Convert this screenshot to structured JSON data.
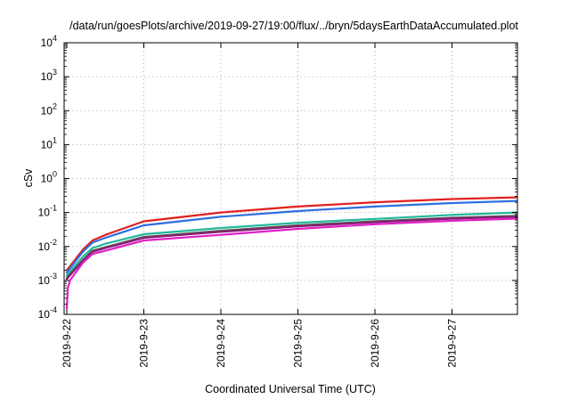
{
  "chart_data": {
    "type": "line",
    "title": "/data/run/goesPlots/archive/2019-09-27/19:00/flux/../bryn/5daysEarthDataAccumulated.plot",
    "xlabel": "Coordinated Universal Time (UTC)",
    "ylabel": "cSv",
    "y_scale": "log",
    "ylim": [
      0.0001,
      10000
    ],
    "x_range": [
      "2019-09-22T00:00",
      "2019-09-27T20:00"
    ],
    "y_ticks": [
      {
        "value": 0.0001,
        "base": "10",
        "exp": "-4"
      },
      {
        "value": 0.001,
        "base": "10",
        "exp": "-3"
      },
      {
        "value": 0.01,
        "base": "10",
        "exp": "-2"
      },
      {
        "value": 0.1,
        "base": "10",
        "exp": "-1"
      },
      {
        "value": 1,
        "base": "10",
        "exp": "0"
      },
      {
        "value": 10,
        "base": "10",
        "exp": "1"
      },
      {
        "value": 100,
        "base": "10",
        "exp": "2"
      },
      {
        "value": 1000,
        "base": "10",
        "exp": "3"
      },
      {
        "value": 10000,
        "base": "10",
        "exp": "4"
      }
    ],
    "x_ticks": [
      "2019-9-22",
      "2019-9-23",
      "2019-9-24",
      "2019-9-25",
      "2019-9-26",
      "2019-9-27"
    ],
    "grid": true,
    "legend": "none",
    "series": [
      {
        "color": "#e0201e",
        "x": [
          "2019-09-22T00:00",
          "2019-09-22T05:00",
          "2019-09-22T08:00",
          "2019-09-22T12:00",
          "2019-09-23T00:00",
          "2019-09-24T00:00",
          "2019-09-25T00:00",
          "2019-09-26T00:00",
          "2019-09-27T00:00",
          "2019-09-27T20:00"
        ],
        "y": [
          0.002,
          0.008,
          0.015,
          0.022,
          0.055,
          0.1,
          0.15,
          0.2,
          0.25,
          0.28
        ]
      },
      {
        "color": "#2e6fe0",
        "x": [
          "2019-09-22T00:00",
          "2019-09-22T05:00",
          "2019-09-22T08:00",
          "2019-09-22T12:00",
          "2019-09-23T00:00",
          "2019-09-24T00:00",
          "2019-09-25T00:00",
          "2019-09-26T00:00",
          "2019-09-27T00:00",
          "2019-09-27T20:00"
        ],
        "y": [
          0.0017,
          0.007,
          0.013,
          0.018,
          0.042,
          0.075,
          0.11,
          0.15,
          0.19,
          0.22
        ]
      },
      {
        "color": "#22b89a",
        "x": [
          "2019-09-22T00:00",
          "2019-09-22T05:00",
          "2019-09-22T08:00",
          "2019-09-22T12:00",
          "2019-09-23T00:00",
          "2019-09-24T00:00",
          "2019-09-25T00:00",
          "2019-09-26T00:00",
          "2019-09-27T00:00",
          "2019-09-27T20:00"
        ],
        "y": [
          0.0014,
          0.005,
          0.009,
          0.012,
          0.023,
          0.035,
          0.05,
          0.065,
          0.085,
          0.1
        ]
      },
      {
        "color": "#555555",
        "x": [
          "2019-09-22T00:00",
          "2019-09-22T05:00",
          "2019-09-22T08:00",
          "2019-09-22T12:00",
          "2019-09-23T00:00",
          "2019-09-24T00:00",
          "2019-09-25T00:00",
          "2019-09-26T00:00",
          "2019-09-27T00:00",
          "2019-09-27T20:00"
        ],
        "y": [
          0.0012,
          0.004,
          0.0075,
          0.0095,
          0.019,
          0.029,
          0.042,
          0.055,
          0.07,
          0.08
        ]
      },
      {
        "color": "#8a1e72",
        "x": [
          "2019-09-22T00:00",
          "2019-09-22T05:00",
          "2019-09-22T08:00",
          "2019-09-22T12:00",
          "2019-09-23T00:00",
          "2019-09-24T00:00",
          "2019-09-25T00:00",
          "2019-09-26T00:00",
          "2019-09-27T00:00",
          "2019-09-27T20:00"
        ],
        "y": [
          0.0011,
          0.0038,
          0.007,
          0.009,
          0.018,
          0.027,
          0.039,
          0.052,
          0.066,
          0.075
        ]
      },
      {
        "color": "#e020c8",
        "x": [
          "2019-09-22T00:00",
          "2019-09-22T00:20",
          "2019-09-22T01:00",
          "2019-09-22T05:00",
          "2019-09-22T08:00",
          "2019-09-22T12:00",
          "2019-09-23T00:00",
          "2019-09-24T00:00",
          "2019-09-25T00:00",
          "2019-09-26T00:00",
          "2019-09-27T00:00",
          "2019-09-27T20:00"
        ],
        "y": [
          0.00015,
          0.0006,
          0.001,
          0.0033,
          0.006,
          0.0075,
          0.015,
          0.022,
          0.033,
          0.045,
          0.057,
          0.066
        ]
      }
    ]
  }
}
